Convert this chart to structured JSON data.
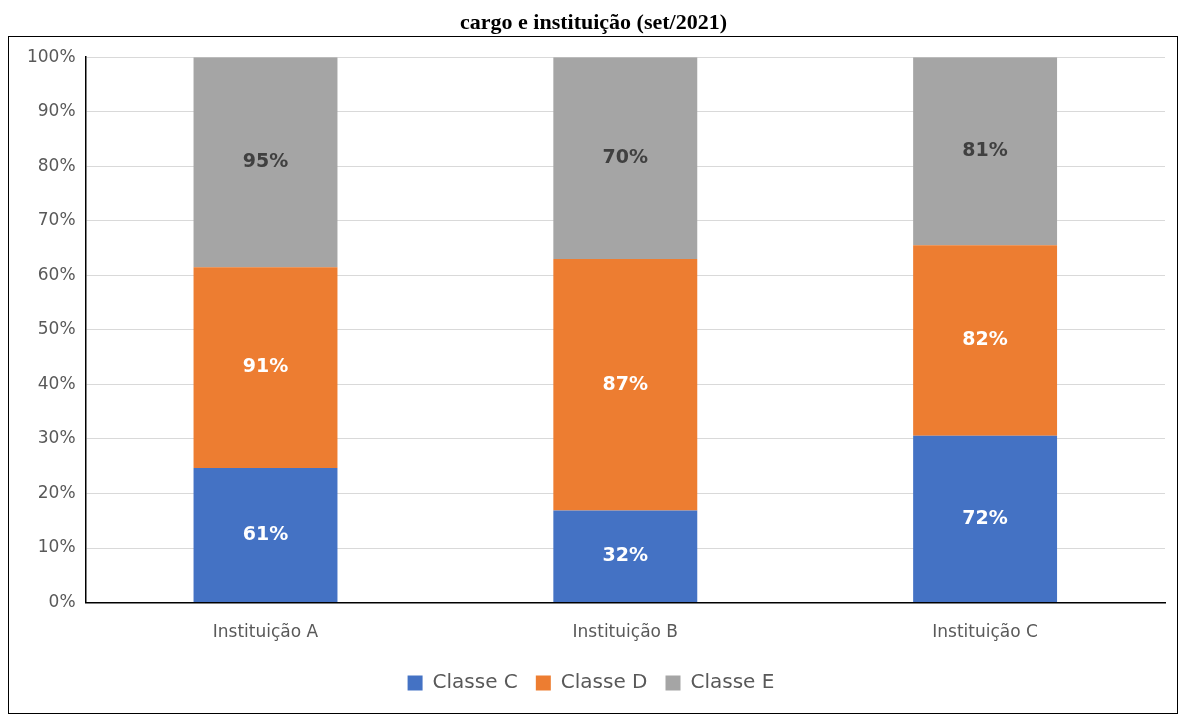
{
  "chart_data": {
    "type": "bar",
    "title": "cargo e instituição (set/2021)",
    "stacked": true,
    "categories": [
      "Instituição A",
      "Instituição B",
      "Instituição C"
    ],
    "series": [
      {
        "name": "Classe C",
        "color": "#4472c4",
        "values": [
          24.7,
          16.9,
          30.6
        ]
      },
      {
        "name": "Classe D",
        "color": "#ed7d31",
        "values": [
          36.8,
          46.1,
          34.9
        ]
      },
      {
        "name": "Classe E",
        "color": "#a5a5a5",
        "values": [
          38.5,
          37.0,
          34.5
        ]
      }
    ],
    "annotations": [
      "61%",
      "91%",
      "95%",
      "32%",
      "87%",
      "70%",
      "72%",
      "82%",
      "81%"
    ],
    "ylim": [
      0,
      100
    ],
    "yticks": [
      {
        "value": 0,
        "label": "0%"
      },
      {
        "value": 10,
        "label": "10%"
      },
      {
        "value": 20,
        "label": "20%"
      },
      {
        "value": 30,
        "label": "30%"
      },
      {
        "value": 40,
        "label": "40%"
      },
      {
        "value": 50,
        "label": "50%"
      },
      {
        "value": 60,
        "label": "60%"
      },
      {
        "value": 70,
        "label": "70%"
      },
      {
        "value": 80,
        "label": "80%"
      },
      {
        "value": 90,
        "label": "90%"
      },
      {
        "value": 100,
        "label": "100%"
      }
    ],
    "grid": "y",
    "legend": "bottom"
  }
}
